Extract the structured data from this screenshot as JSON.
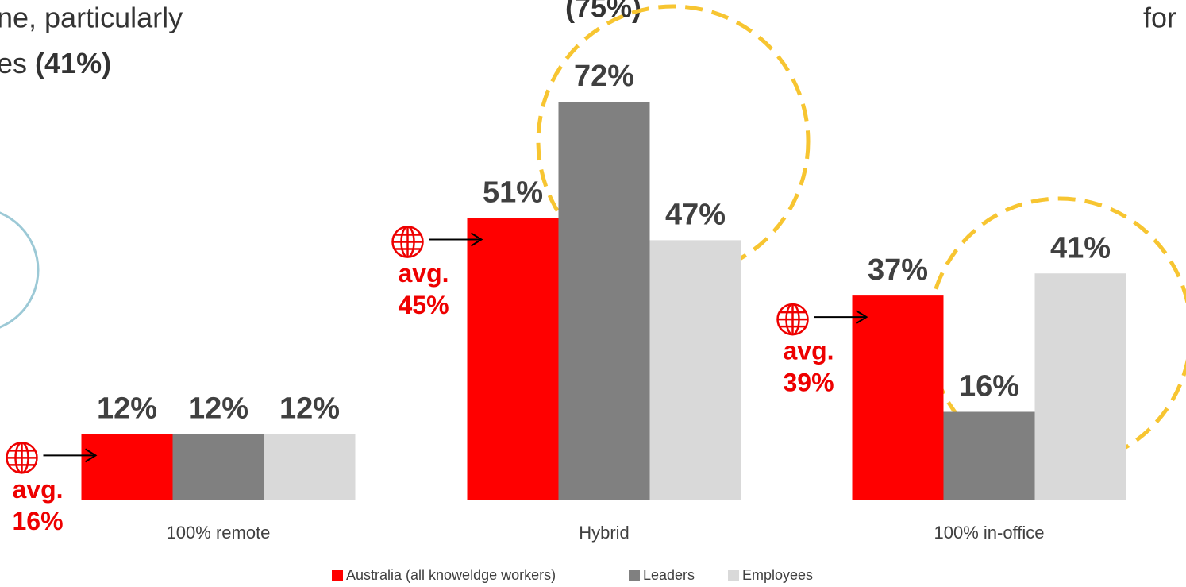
{
  "chart_data": {
    "type": "bar",
    "annotations": [
      "ne, particularly",
      "es",
      "(41%)",
      "(75%)",
      "for"
    ],
    "categories": [
      "100% remote",
      "Hybrid",
      "100% in-office"
    ],
    "series": [
      {
        "name": "Australia (all knoweldge workers)",
        "color": "#ff0000",
        "values": [
          12,
          51,
          37
        ],
        "value_labels": [
          "12%",
          "51%",
          "37%"
        ]
      },
      {
        "name": "Leaders",
        "color": "#808080",
        "values": [
          12,
          72,
          16
        ],
        "value_labels": [
          "12%",
          "72%",
          "16%"
        ]
      },
      {
        "name": "Employees",
        "color": "#d9d9d9",
        "values": [
          12,
          47,
          41
        ],
        "value_labels": [
          "12%",
          "47%",
          "41%"
        ]
      }
    ],
    "averages": {
      "label": "avg.",
      "values": [
        16,
        45,
        39
      ],
      "value_labels": [
        "16%",
        "45%",
        "39%"
      ],
      "color": "#ee0000"
    }
  }
}
